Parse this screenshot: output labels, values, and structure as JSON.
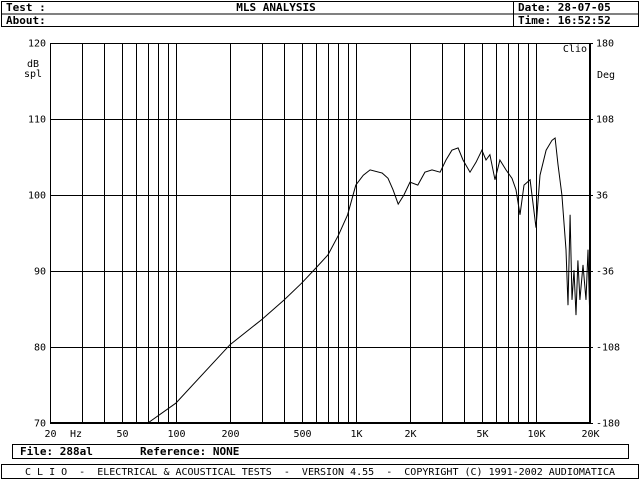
{
  "header": {
    "test_label": "Test :",
    "title": "MLS ANALYSIS",
    "about_label": "About:",
    "date": "Date: 28-07-05",
    "time": "Time: 16:52:52"
  },
  "footer": {
    "file": "File: 288al",
    "reference": "Reference: NONE"
  },
  "status_bar": "C L I O  -  ELECTRICAL & ACOUSTICAL TESTS  -  VERSION 4.55  -  COPYRIGHT (C) 1991-2002 AUDIOMATICA",
  "chart_data": {
    "type": "line",
    "brand": "Clio",
    "y_label": [
      "dB",
      "spl"
    ],
    "y2_label": "Deg",
    "x_label": "Hz",
    "log_x": true,
    "grid": true,
    "xlim": [
      20,
      20000
    ],
    "ylim": [
      70,
      120
    ],
    "y2lim": [
      -180,
      180
    ],
    "xticks": [
      20,
      50,
      100,
      200,
      500,
      {
        "value": 1000,
        "label": "1K"
      },
      {
        "value": 2000,
        "label": "2K"
      },
      {
        "value": 5000,
        "label": "5K"
      },
      {
        "value": 10000,
        "label": "10K"
      },
      {
        "value": 20000,
        "label": "20K"
      }
    ],
    "xminor": [
      30,
      40,
      60,
      70,
      80,
      90,
      300,
      400,
      600,
      700,
      800,
      900,
      3000,
      4000,
      6000,
      7000,
      8000,
      9000
    ],
    "yticks": [
      70,
      80,
      90,
      100,
      110,
      120
    ],
    "y2ticks": [
      -180,
      -108,
      -36,
      36,
      108,
      180
    ],
    "x": [
      70,
      100,
      200,
      300,
      400,
      500,
      600,
      700,
      800,
      900,
      1000,
      1100,
      1200,
      1400,
      1510,
      1610,
      1720,
      1850,
      2000,
      2210,
      2420,
      2650,
      2940,
      3170,
      3420,
      3700,
      3940,
      4310,
      4650,
      5020,
      5290,
      5560,
      5930,
      6320,
      6830,
      7370,
      7760,
      8170,
      8600,
      9290,
      10020,
      10550,
      11400,
      12300,
      12800,
      13280,
      13970,
      14720,
      15100,
      15500,
      15890,
      16300,
      16710,
      17140,
      17580,
      18280,
      19000,
      19500,
      20000
    ],
    "series": [
      {
        "color": "#000000",
        "values": [
          70,
          72.6,
          80.3,
          83.6,
          86.2,
          88.4,
          90.4,
          92.1,
          94.7,
          97.4,
          101.3,
          102.6,
          103.3,
          102.9,
          102.2,
          100.7,
          98.8,
          100,
          101.7,
          101.3,
          103,
          103.3,
          103,
          104.6,
          105.9,
          106.2,
          104.6,
          103,
          104.3,
          105.9,
          104.6,
          105.3,
          102,
          104.6,
          103.3,
          102.2,
          100.7,
          97.4,
          101.3,
          102,
          95.7,
          102.6,
          105.9,
          107.2,
          107.5,
          104,
          100,
          92.8,
          85.5,
          97.4,
          86.2,
          90.1,
          84.2,
          91.4,
          86.2,
          90.8,
          86.2,
          92.8,
          82.9
        ]
      }
    ]
  }
}
